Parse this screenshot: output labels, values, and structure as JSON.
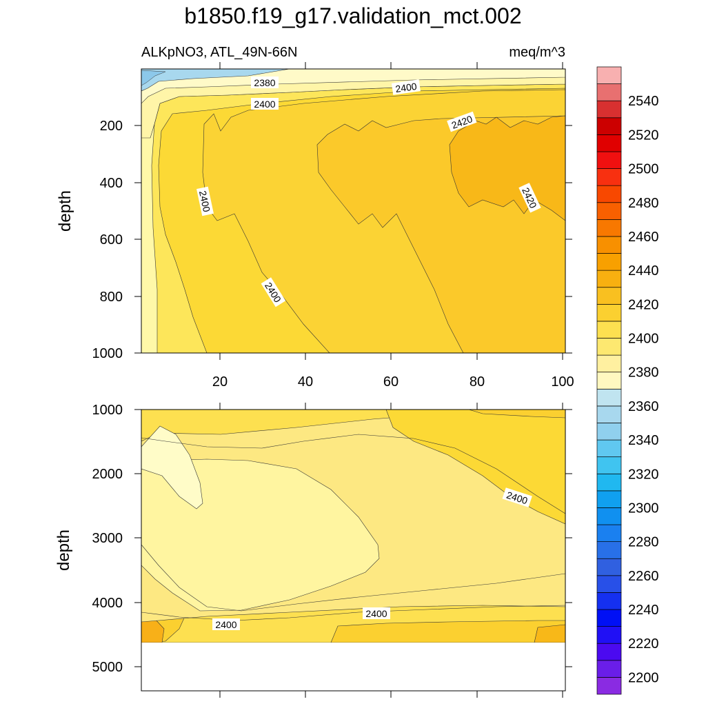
{
  "chart_data": {
    "type": "contour",
    "title": "b1850.f19_g17.validation_mct.002",
    "subtitle_left": "ALKpNO3, ATL_49N-66N",
    "subtitle_right": "meq/m^3",
    "panels": [
      {
        "name": "upper",
        "ylabel": "depth",
        "ylim": [
          0,
          1000
        ],
        "yticks": [
          "200",
          "400",
          "600",
          "800",
          "1000"
        ],
        "xlim": [
          0,
          101
        ],
        "xticks": [
          "20",
          "40",
          "60",
          "80",
          "100"
        ],
        "contour_labels": [
          "2380",
          "2400",
          "2400",
          "2400",
          "2420",
          "2420",
          "2400"
        ]
      },
      {
        "name": "lower",
        "ylabel": "depth",
        "ylim": [
          1000,
          5400
        ],
        "yticks": [
          "1000",
          "2000",
          "3000",
          "4000",
          "5000"
        ],
        "xlim": [
          0,
          101
        ],
        "contour_labels": [
          "2400",
          "2400",
          "2400"
        ]
      }
    ],
    "colorbar": {
      "levels": [
        2200,
        2210,
        2220,
        2230,
        2240,
        2250,
        2260,
        2270,
        2280,
        2290,
        2300,
        2310,
        2320,
        2330,
        2340,
        2350,
        2360,
        2370,
        2380,
        2390,
        2400,
        2410,
        2420,
        2430,
        2440,
        2450,
        2460,
        2470,
        2480,
        2490,
        2500,
        2510,
        2520,
        2530,
        2540,
        2550
      ],
      "tick_labels": [
        "2200",
        "2220",
        "2240",
        "2260",
        "2280",
        "2300",
        "2320",
        "2340",
        "2360",
        "2380",
        "2400",
        "2420",
        "2440",
        "2460",
        "2480",
        "2500",
        "2520",
        "2540"
      ],
      "colors": [
        "#8a2be2",
        "#6a1ee8",
        "#4b0af0",
        "#2010f5",
        "#0010f5",
        "#1530f0",
        "#2850e8",
        "#3060e0",
        "#2870e8",
        "#1a80f0",
        "#1090f0",
        "#10a0f0",
        "#20b8f0",
        "#40c4f0",
        "#60c8f0",
        "#90d0ee",
        "#a8d8ee",
        "#c0e4f0",
        "#fff8c0",
        "#fff0a0",
        "#fde870",
        "#fde050",
        "#fbd030",
        "#f9c020",
        "#f8b010",
        "#f8a000",
        "#f89000",
        "#f87800",
        "#f86000",
        "#f84800",
        "#f83010",
        "#f01010",
        "#e00000",
        "#cc0000",
        "#d83030",
        "#e87070",
        "#f8b0b0"
      ]
    }
  }
}
